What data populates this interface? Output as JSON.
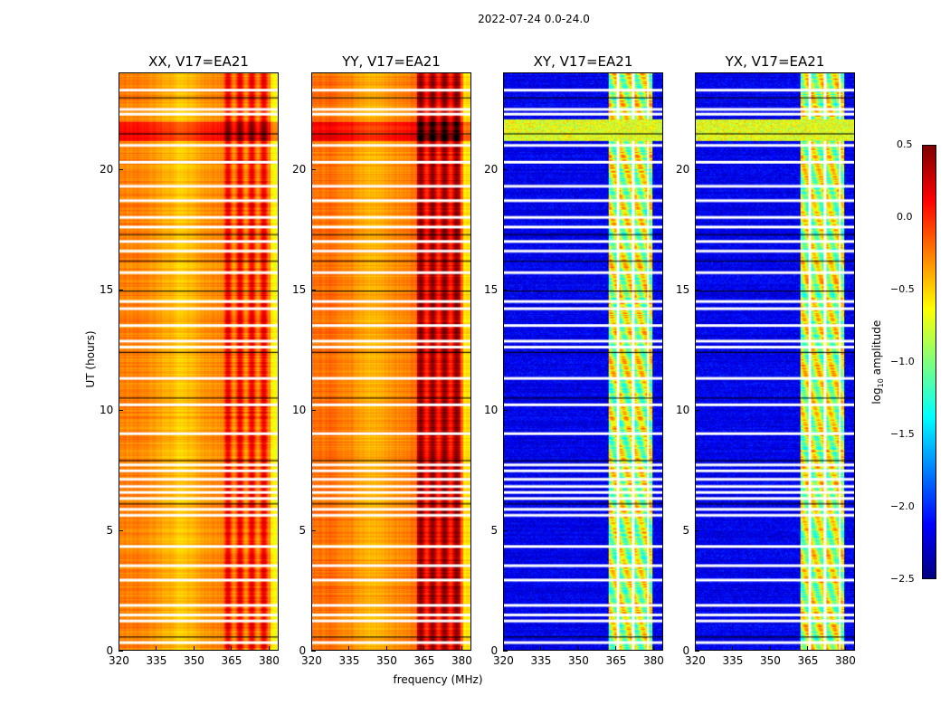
{
  "chart_data": {
    "type": "heatmap",
    "title": "2022-07-24 0.0-24.0",
    "xlabel": "frequency (MHz)",
    "ylabel": "UT (hours)",
    "xlim": [
      320,
      384
    ],
    "ylim": [
      0,
      24
    ],
    "xticks": [
      "320",
      "335",
      "350",
      "365",
      "380"
    ],
    "yticks": [
      "0",
      "5",
      "10",
      "15",
      "20"
    ],
    "colorbar": {
      "label_main": "log",
      "label_sub": "10",
      "label_rest": " amplitude",
      "range": [
        -2.5,
        0.5
      ],
      "ticks": [
        "0.5",
        "0.0",
        "−0.5",
        "−1.0",
        "−1.5",
        "−2.0",
        "−2.5"
      ],
      "colormap": "jet"
    },
    "panels": [
      {
        "title": "XX, V17=EA21",
        "kind": "parallel",
        "base_level": -0.25,
        "band_level": -0.05,
        "band_mhz": [
          362,
          380
        ]
      },
      {
        "title": "YY, V17=EA21",
        "kind": "parallel",
        "base_level": -0.2,
        "band_level": 0.25,
        "band_mhz": [
          362,
          380
        ]
      },
      {
        "title": "XY, V17=EA21",
        "kind": "cross",
        "base_level": -2.35,
        "band_level": -0.8,
        "band_mhz": [
          362,
          380
        ]
      },
      {
        "title": "YX, V17=EA21",
        "kind": "cross",
        "base_level": -2.35,
        "band_level": -0.8,
        "band_mhz": [
          362,
          380
        ]
      }
    ],
    "flagged_hours": [
      0.3,
      1.2,
      1.45,
      1.85,
      2.9,
      3.5,
      4.3,
      5.6,
      5.85,
      6.3,
      6.55,
      6.8,
      7.1,
      7.45,
      7.7,
      9.0,
      10.2,
      11.3,
      12.6,
      12.85,
      13.5,
      14.2,
      14.5,
      15.7,
      16.6,
      17.0,
      17.6,
      18.0,
      18.7,
      19.3,
      20.3,
      21.0,
      22.3,
      22.5,
      23.3
    ],
    "black_line_hours": [
      0.55,
      6.1,
      7.9,
      10.5,
      12.4,
      14.95,
      16.2,
      17.3,
      21.5,
      23.0
    ]
  }
}
